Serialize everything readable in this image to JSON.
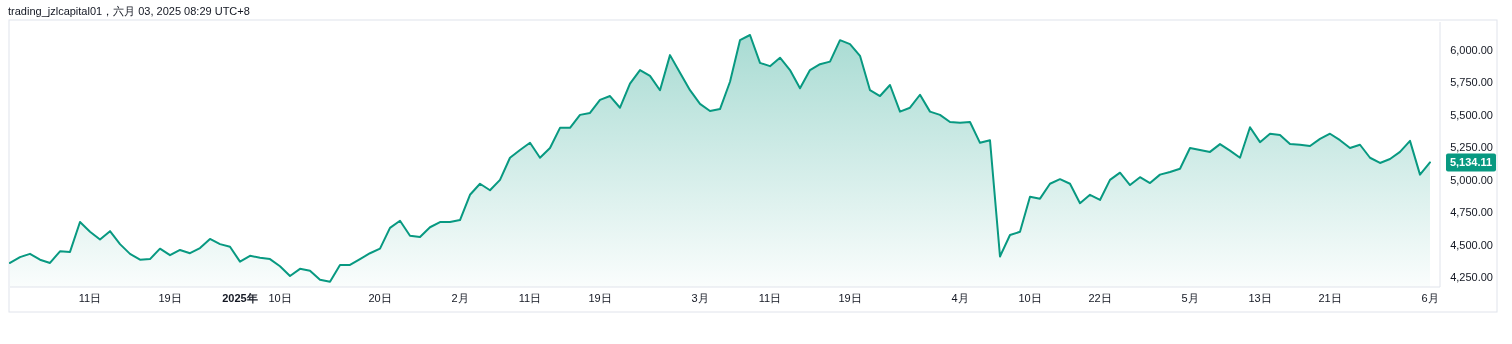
{
  "chart_data": {
    "type": "area",
    "title": "trading_jzlcapital01，六月 03, 2025 08:29 UTC+8",
    "categories": [
      null,
      null,
      null,
      null,
      null,
      null,
      null,
      null,
      "11日",
      null,
      null,
      null,
      null,
      null,
      null,
      null,
      "19日",
      null,
      null,
      null,
      null,
      null,
      null,
      "2025年",
      null,
      null,
      null,
      "10日",
      null,
      null,
      null,
      null,
      null,
      null,
      null,
      null,
      null,
      "20日",
      null,
      null,
      null,
      null,
      null,
      null,
      null,
      "2月",
      null,
      null,
      null,
      null,
      null,
      null,
      "11日",
      null,
      null,
      null,
      null,
      null,
      null,
      "19日",
      null,
      null,
      null,
      null,
      null,
      null,
      null,
      null,
      null,
      "3月",
      null,
      null,
      null,
      null,
      null,
      null,
      "11日",
      null,
      null,
      null,
      null,
      null,
      null,
      null,
      "19日",
      null,
      null,
      null,
      null,
      null,
      null,
      null,
      null,
      null,
      null,
      "4月",
      null,
      null,
      null,
      null,
      null,
      null,
      "10日",
      null,
      null,
      null,
      null,
      null,
      null,
      "22日",
      null,
      null,
      null,
      null,
      null,
      null,
      null,
      null,
      "5月",
      null,
      null,
      null,
      null,
      null,
      null,
      "13日",
      null,
      null,
      null,
      null,
      null,
      null,
      "21日",
      null,
      null,
      null,
      null,
      null,
      null,
      null,
      null,
      null,
      "6月"
    ],
    "series": [
      {
        "color": "#089981",
        "values": [
          4360,
          4405,
          4430,
          4385,
          4360,
          4450,
          4445,
          4675,
          4600,
          4540,
          4605,
          4505,
          4430,
          4385,
          4390,
          4470,
          4420,
          4460,
          4435,
          4475,
          4545,
          4505,
          4485,
          4370,
          4415,
          4400,
          4390,
          4335,
          4260,
          4315,
          4300,
          4230,
          4215,
          4345,
          4345,
          4390,
          4435,
          4470,
          4630,
          4685,
          4570,
          4560,
          4635,
          4675,
          4675,
          4690,
          4885,
          4970,
          4920,
          5000,
          5170,
          5230,
          5285,
          5170,
          5245,
          5400,
          5400,
          5500,
          5515,
          5615,
          5645,
          5555,
          5740,
          5845,
          5800,
          5690,
          5960,
          5825,
          5690,
          5585,
          5530,
          5545,
          5755,
          6075,
          6115,
          5900,
          5875,
          5940,
          5845,
          5705,
          5845,
          5890,
          5910,
          6075,
          6045,
          5955,
          5690,
          5645,
          5730,
          5525,
          5555,
          5655,
          5525,
          5500,
          5445,
          5440,
          5445,
          5285,
          5305,
          4410,
          4575,
          4600,
          4870,
          4855,
          4970,
          5005,
          4970,
          4820,
          4885,
          4845,
          5000,
          5055,
          4960,
          5020,
          4975,
          5040,
          5060,
          5085,
          5245,
          5230,
          5215,
          5275,
          5225,
          5170,
          5405,
          5290,
          5355,
          5345,
          5275,
          5270,
          5260,
          5315,
          5355,
          5305,
          5245,
          5270,
          5170,
          5130,
          5160,
          5215,
          5300,
          5040,
          5134.11
        ],
        "value_labels": [
          null,
          null,
          null,
          null,
          null,
          null,
          null,
          null,
          null,
          null,
          null,
          null,
          null,
          null,
          null,
          null,
          null,
          null,
          null,
          null,
          null,
          null,
          null,
          null,
          null,
          null,
          null,
          null,
          null,
          null,
          null,
          null,
          null,
          null,
          null,
          null,
          null,
          null,
          null,
          null,
          null,
          null,
          null,
          null,
          null,
          null,
          null,
          null,
          null,
          null,
          null,
          null,
          null,
          null,
          null,
          null,
          null,
          null,
          null,
          null,
          null,
          null,
          null,
          null,
          null,
          null,
          null,
          null,
          null,
          null,
          null,
          null,
          null,
          null,
          null,
          null,
          null,
          null,
          null,
          null,
          null,
          null,
          null,
          null,
          null,
          null,
          null,
          null,
          null,
          null,
          null,
          null,
          null,
          null,
          null,
          null,
          null,
          null,
          null,
          null,
          null,
          null,
          null,
          null,
          null,
          null,
          null,
          null,
          null,
          null,
          null,
          null,
          null,
          null,
          null,
          null,
          null,
          null,
          null,
          null,
          null,
          null,
          null,
          null,
          null,
          null,
          null,
          null,
          null,
          null,
          null,
          null,
          null,
          null,
          null,
          null,
          null,
          null,
          null,
          null,
          null,
          null,
          "5,134.11"
        ]
      }
    ],
    "ylim": [
      4175,
      6215
    ],
    "yticks": [
      {
        "value": 4250,
        "label": "4,250.00"
      },
      {
        "value": 4500,
        "label": "4,500.00"
      },
      {
        "value": 4750,
        "label": "4,750.00"
      },
      {
        "value": 5000,
        "label": "5,000.00"
      },
      {
        "value": 5250,
        "label": "5,250.00"
      },
      {
        "value": 5500,
        "label": "5,500.00"
      },
      {
        "value": 5750,
        "label": "5,750.00"
      },
      {
        "value": 6000,
        "label": "6,000.00"
      }
    ],
    "grid": false
  }
}
